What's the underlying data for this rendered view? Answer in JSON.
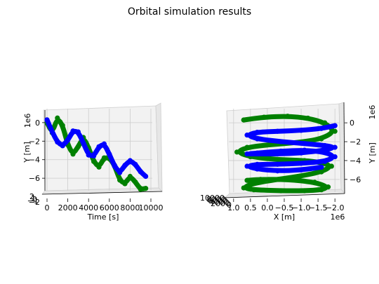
{
  "title": "Orbital simulation results",
  "colors": {
    "series_a": "#008000",
    "series_b": "#0000ff"
  },
  "chart_data": [
    {
      "type": "line",
      "projection": "3d",
      "x_axis": {
        "label": "Time [s]",
        "ticks": [
          "0",
          "2000",
          "4000",
          "6000",
          "8000",
          "10000"
        ],
        "range": [
          0,
          10000
        ]
      },
      "y_axis": {
        "label": "Y [m]",
        "scale_label": "1e6",
        "ticks": [
          "0",
          "−2",
          "−4",
          "−6"
        ],
        "range": [
          -7.2,
          1.2
        ]
      },
      "depth_ticks": [
        "−2",
        "−1",
        "0",
        "1",
        "2"
      ],
      "series": [
        {
          "color": "#008000",
          "x": [
            0,
            500,
            1000,
            1500,
            2000,
            2500,
            3000,
            3500,
            4000,
            4500,
            5000,
            5500,
            6000,
            6500,
            7000,
            7500,
            8000,
            8500,
            9000,
            9500
          ],
          "y": [
            0,
            -1.1,
            0.5,
            -0.3,
            -2.4,
            -3.4,
            -2.6,
            -1.6,
            -2.7,
            -4.2,
            -4.8,
            -3.8,
            -3.8,
            -4.6,
            -6.2,
            -6.6,
            -5.8,
            -6.4,
            -7.2,
            -7.1
          ]
        },
        {
          "color": "#0000ff",
          "x": [
            0,
            500,
            1000,
            1500,
            2000,
            2500,
            3000,
            3500,
            4000,
            4500,
            5000,
            5500,
            6000,
            6500,
            7000,
            7500,
            8000,
            8500,
            9000,
            9500
          ],
          "y": [
            0.3,
            -1.0,
            -2.1,
            -2.5,
            -1.9,
            -0.9,
            -1.0,
            -2.2,
            -3.5,
            -3.6,
            -2.6,
            -2.3,
            -3.4,
            -4.7,
            -5.4,
            -4.6,
            -4.1,
            -4.5,
            -5.3,
            -5.8
          ]
        }
      ]
    },
    {
      "type": "line",
      "projection": "3d",
      "x_axis": {
        "label": "X [m]",
        "scale_label": "1e6",
        "ticks": [
          "1.0",
          "0.5",
          "0.0",
          "−0.5",
          "−1.0",
          "−1.5",
          "−2.0"
        ],
        "range": [
          1.1,
          -2.1
        ]
      },
      "y_axis": {
        "label": "Y [m]",
        "scale_label": "1e6",
        "ticks": [
          "0",
          "−2",
          "−4",
          "−6"
        ],
        "range": [
          -7.2,
          1.2
        ]
      },
      "depth_ticks": [
        "0",
        "2000",
        "4000",
        "6000",
        "8000",
        "10000"
      ],
      "series": [
        {
          "color": "#008000",
          "x": [
            0.7,
            0.1,
            -0.6,
            -1.2,
            -1.7,
            -2.0,
            -1.6,
            -0.9,
            -0.1,
            0.6,
            0.9,
            0.5,
            -0.3,
            -1.1,
            -1.6,
            -1.9,
            -1.6,
            -0.9,
            -0.1,
            0.5,
            0.7,
            0.4,
            -0.4,
            -1.1,
            -1.6,
            -1.8,
            -1.4,
            -0.6,
            0.2,
            0.6
          ],
          "y": [
            0.3,
            0.6,
            0.7,
            0.5,
            0.0,
            -0.9,
            -1.7,
            -2.1,
            -2.3,
            -2.6,
            -3.1,
            -3.6,
            -3.9,
            -4.0,
            -4.2,
            -4.6,
            -5.2,
            -5.7,
            -6.1,
            -6.5,
            -6.9,
            -7.1,
            -7.2,
            -7.2,
            -7.1,
            -6.8,
            -6.3,
            -6.0,
            -6.0,
            -6.1
          ]
        },
        {
          "color": "#0000ff",
          "x": [
            -2.0,
            -1.6,
            -1.0,
            -0.3,
            0.3,
            0.6,
            0.3,
            -0.4,
            -1.1,
            -1.7,
            -2.0,
            -1.7,
            -1.0,
            -0.3,
            0.3,
            0.6,
            0.3,
            -0.4,
            -1.1,
            -1.7,
            -2.0,
            -1.7,
            -1.0,
            -0.3,
            0.3,
            0.6,
            0.3,
            -0.3,
            -1.0,
            -1.6
          ],
          "y": [
            -0.3,
            -0.6,
            -0.8,
            -0.9,
            -1.0,
            -1.3,
            -1.7,
            -2.0,
            -2.2,
            -2.4,
            -2.6,
            -2.9,
            -3.2,
            -3.3,
            -3.3,
            -3.3,
            -3.2,
            -3.0,
            -2.9,
            -3.1,
            -3.6,
            -4.1,
            -4.3,
            -4.4,
            -4.4,
            -4.6,
            -4.9,
            -5.1,
            -5.0,
            -4.7
          ]
        }
      ]
    }
  ]
}
